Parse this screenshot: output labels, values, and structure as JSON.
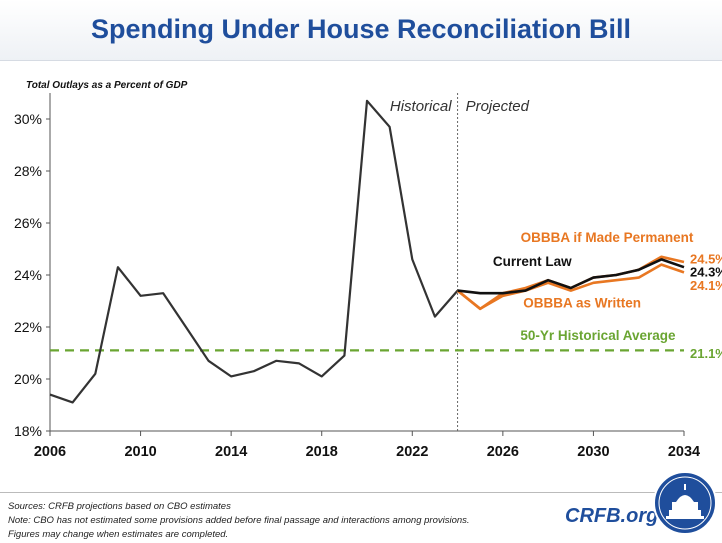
{
  "header": {
    "title": "Spending Under House Reconciliation Bill"
  },
  "chart_data": {
    "type": "line",
    "subtitle": "Total Outlays as a Percent of GDP",
    "xlabel": "",
    "ylabel": "",
    "xlim": [
      2006,
      2034
    ],
    "ylim": [
      18,
      31
    ],
    "x_ticks": [
      2006,
      2010,
      2014,
      2018,
      2022,
      2026,
      2030,
      2034
    ],
    "y_ticks": [
      18,
      20,
      22,
      24,
      26,
      28,
      30
    ],
    "y_tick_labels": [
      "18%",
      "20%",
      "22%",
      "24%",
      "26%",
      "28%",
      "30%"
    ],
    "divider": {
      "x": 2024,
      "left_label": "Historical",
      "right_label": "Projected"
    },
    "grid": false,
    "series": [
      {
        "name": "Historical",
        "color": "#333333",
        "x": [
          2006,
          2007,
          2008,
          2009,
          2010,
          2011,
          2012,
          2013,
          2014,
          2015,
          2016,
          2017,
          2018,
          2019,
          2020,
          2021,
          2022,
          2023,
          2024
        ],
        "values": [
          19.4,
          19.1,
          20.2,
          24.3,
          23.2,
          23.3,
          22.0,
          20.7,
          20.1,
          20.3,
          20.7,
          20.6,
          20.1,
          20.9,
          30.7,
          29.7,
          24.6,
          22.4,
          23.4
        ]
      },
      {
        "name": "OBBBA as Written",
        "color": "#e87722",
        "x": [
          2024,
          2025,
          2026,
          2027,
          2028,
          2029,
          2030,
          2031,
          2032,
          2033,
          2034
        ],
        "values": [
          23.4,
          22.7,
          23.2,
          23.4,
          23.7,
          23.4,
          23.7,
          23.8,
          23.9,
          24.4,
          24.1
        ]
      },
      {
        "name": "OBBBA if Made Permanent",
        "color": "#e87722",
        "x": [
          2024,
          2025,
          2026,
          2027,
          2028,
          2029,
          2030,
          2031,
          2032,
          2033,
          2034
        ],
        "values": [
          23.4,
          22.7,
          23.3,
          23.5,
          23.8,
          23.5,
          23.9,
          24.0,
          24.2,
          24.7,
          24.5
        ]
      },
      {
        "name": "Current Law",
        "color": "#111111",
        "x": [
          2024,
          2025,
          2026,
          2027,
          2028,
          2029,
          2030,
          2031,
          2032,
          2033,
          2034
        ],
        "values": [
          23.4,
          23.3,
          23.3,
          23.4,
          23.8,
          23.5,
          23.9,
          24.0,
          24.2,
          24.6,
          24.3
        ]
      }
    ],
    "reference_line": {
      "name": "50-Yr Historical Average",
      "value": 21.1,
      "color": "#6aa532"
    },
    "labels": [
      {
        "text": "OBBBA if Made Permanent",
        "x": 2030.6,
        "y": 25.26,
        "color": "#e87722"
      },
      {
        "text": "Current Law",
        "x": 2027.3,
        "y": 24.34,
        "color": "#111111"
      },
      {
        "text": "OBBBA as Written",
        "x": 2029.5,
        "y": 22.75,
        "color": "#e87722"
      },
      {
        "text": "50-Yr Historical Average",
        "x": 2030.2,
        "y": 21.5,
        "color": "#6aa532"
      }
    ],
    "end_labels": [
      {
        "text": "24.5%",
        "y": 24.64,
        "color": "#e87722"
      },
      {
        "text": "24.3%",
        "y": 24.14,
        "color": "#111111"
      },
      {
        "text": "24.1%",
        "y": 23.61,
        "color": "#e87722"
      },
      {
        "text": "21.1%",
        "y": 21.0,
        "color": "#6aa532"
      }
    ]
  },
  "footer": {
    "sources": "Sources: CRFB projections based on CBO estimates",
    "note_line1": "Note: CBO has not estimated some provisions added before final passage and interactions among provisions.",
    "note_line2": "Figures may change when estimates are completed.",
    "brand": "CRFB.org"
  }
}
